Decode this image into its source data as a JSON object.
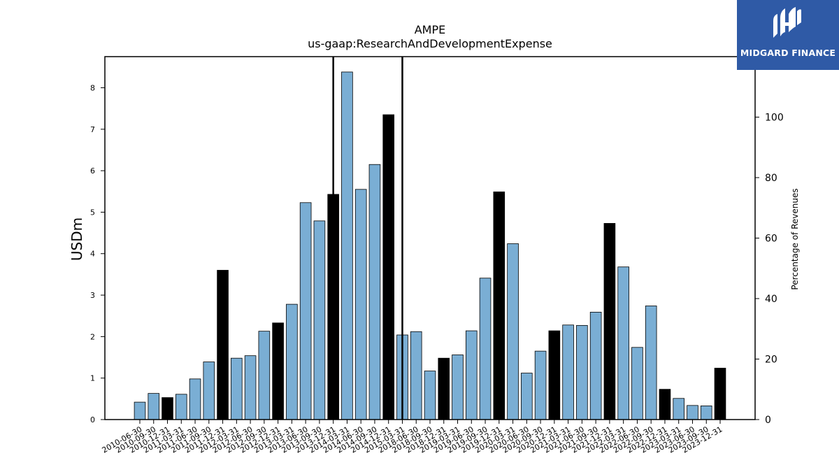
{
  "chart_data": {
    "type": "bar",
    "title": "AMPE",
    "subtitle": "us-gaap:ResearchAndDevelopmentExpense",
    "ylabel": "USDm",
    "y2label": "Percentage of Revenues",
    "ylim": [
      0,
      8.75
    ],
    "y2lim": [
      0,
      120
    ],
    "yticks": [
      0,
      1,
      2,
      3,
      4,
      5,
      6,
      7,
      8
    ],
    "y2ticks": [
      0,
      20,
      40,
      60,
      80,
      100
    ],
    "grid": false,
    "colors": {
      "quarter": "#7aaed4",
      "annual": "#000000",
      "edge": "#000000"
    },
    "vertical_markers": [
      "2013-12-31",
      "2015-03-31"
    ],
    "categories": [
      "2010-06-30",
      "2010-09-30",
      "2010-12-31",
      "2011-03-31",
      "2011-06-30",
      "2011-09-30",
      "2011-12-31",
      "2012-03-31",
      "2012-06-30",
      "2012-09-30",
      "2012-12-31",
      "2013-03-31",
      "2013-06-30",
      "2013-09-30",
      "2013-12-31",
      "2014-03-31",
      "2014-06-30",
      "2014-09-30",
      "2014-12-31",
      "2015-03-31",
      "2018-06-30",
      "2018-09-30",
      "2018-12-31",
      "2019-03-31",
      "2019-06-30",
      "2019-09-30",
      "2019-12-31",
      "2020-03-31",
      "2020-06-30",
      "2020-09-30",
      "2020-12-31",
      "2021-03-31",
      "2021-06-30",
      "2021-09-30",
      "2021-12-31",
      "2022-03-31",
      "2022-06-30",
      "2022-09-30",
      "2022-12-31",
      "2023-03-31",
      "2023-06-30",
      "2023-09-30",
      "2023-12-31"
    ],
    "values": [
      0.42,
      0.63,
      0.53,
      0.61,
      0.98,
      1.39,
      3.6,
      1.48,
      1.54,
      2.13,
      2.33,
      2.78,
      5.23,
      4.79,
      5.43,
      8.38,
      5.55,
      6.15,
      7.35,
      2.04,
      2.12,
      1.17,
      1.48,
      1.56,
      2.14,
      3.41,
      5.49,
      4.24,
      1.12,
      1.65,
      2.14,
      2.28,
      2.27,
      2.59,
      4.73,
      3.68,
      1.74,
      2.74,
      0.73,
      0.51,
      0.34,
      0.33,
      1.24
    ],
    "annual": [
      false,
      false,
      true,
      false,
      false,
      false,
      true,
      false,
      false,
      false,
      true,
      false,
      false,
      false,
      true,
      false,
      false,
      false,
      true,
      false,
      false,
      false,
      true,
      false,
      false,
      false,
      true,
      false,
      false,
      false,
      true,
      false,
      false,
      false,
      true,
      false,
      false,
      false,
      true,
      false,
      false,
      false,
      true
    ]
  },
  "logo": {
    "text": "MIDGARD FINANCE",
    "color": "#2f5aa6"
  }
}
